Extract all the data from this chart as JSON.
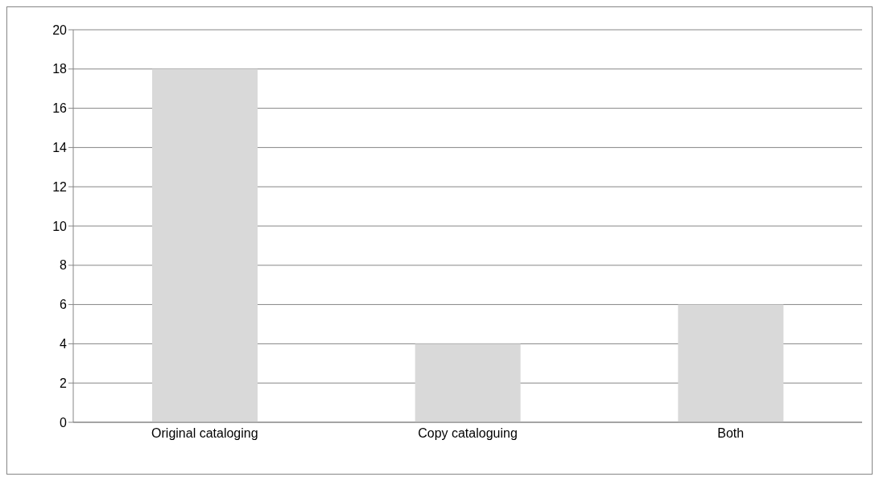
{
  "chart_data": {
    "type": "bar",
    "categories": [
      "Original cataloging",
      "Copy cataloguing",
      "Both"
    ],
    "values": [
      18,
      4,
      6
    ],
    "color": "#d9d9d9",
    "ylim": [
      0,
      20
    ],
    "yticks": [
      0,
      2,
      4,
      6,
      8,
      10,
      12,
      14,
      16,
      18,
      20
    ],
    "grid": "y",
    "legend": false
  }
}
